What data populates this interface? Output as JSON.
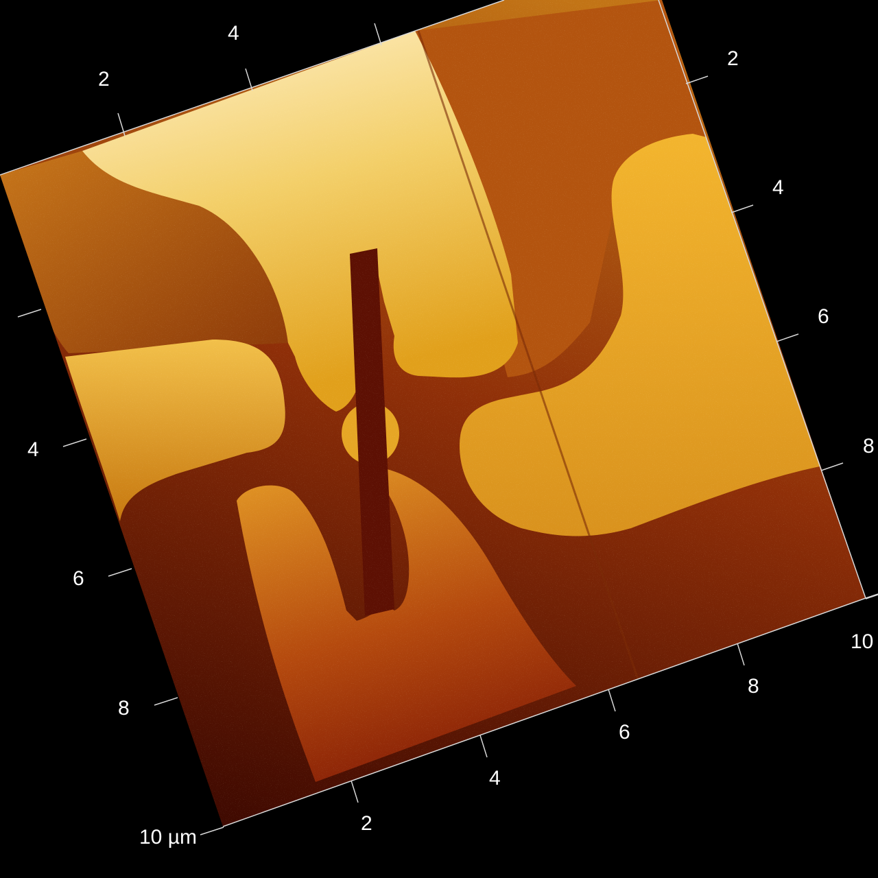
{
  "image": {
    "kind": "AFM 3D topography render",
    "background_color": "#000000",
    "unit_label": "10 µm"
  },
  "axes": {
    "left_edge": {
      "labels": [
        "4",
        "6",
        "8",
        "10 µm"
      ]
    },
    "top_edge": {
      "labels": [
        "2",
        "4"
      ]
    },
    "right_edge": {
      "labels": [
        "2",
        "4",
        "6",
        "8",
        "10"
      ]
    },
    "bottom_edge": {
      "labels": [
        "2",
        "4",
        "6",
        "8"
      ]
    }
  },
  "colors": {
    "highest": "#fff2cf",
    "high": "#f0b93a",
    "mid": "#c8741a",
    "low": "#8a2606",
    "lowest": "#330500"
  }
}
